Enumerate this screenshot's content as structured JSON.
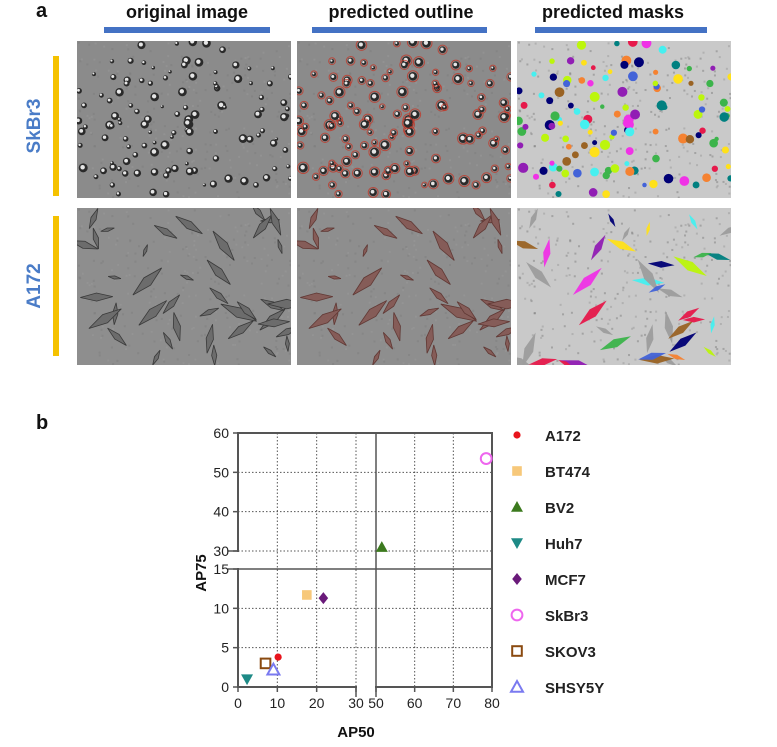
{
  "panel_a": {
    "letter": "a",
    "columns": [
      "original image",
      "predicted outline",
      "predicted masks"
    ],
    "rows": [
      "SkBr3",
      "A172"
    ]
  },
  "panel_b": {
    "letter": "b"
  },
  "colors": {
    "column_bar": "#4472c4",
    "row_bar": "#f5c200",
    "row_label": "#4a7cc7"
  },
  "chart_data": {
    "type": "scatter",
    "xlabel": "AP50",
    "ylabel": "AP75",
    "x_ticks": [
      0,
      10,
      20,
      30,
      50,
      60,
      70,
      80
    ],
    "y_ticks": [
      0,
      5,
      10,
      15,
      30,
      40,
      50,
      60
    ],
    "x_broken_axis": {
      "lower_segment": [
        0,
        30
      ],
      "upper_segment": [
        50,
        80
      ]
    },
    "y_broken_axis": {
      "lower_segment": [
        0,
        15
      ],
      "upper_segment": [
        30,
        60
      ]
    },
    "grid": true,
    "legend_placement": "right",
    "series": [
      {
        "name": "A172",
        "marker": "circle-filled",
        "color": "#e8141c",
        "x": 10.2,
        "y": 3.8
      },
      {
        "name": "BT474",
        "marker": "square-filled",
        "color": "#f7c87a",
        "x": 17.5,
        "y": 11.7
      },
      {
        "name": "BV2",
        "marker": "triangle-up-filled",
        "color": "#3c7a1e",
        "x": 51.5,
        "y": 31.0
      },
      {
        "name": "Huh7",
        "marker": "triangle-down-filled",
        "color": "#1e8a86",
        "x": 2.3,
        "y": 1.0
      },
      {
        "name": "MCF7",
        "marker": "diamond-filled",
        "color": "#6a1a7a",
        "x": 21.7,
        "y": 11.3
      },
      {
        "name": "SkBr3",
        "marker": "circle-open",
        "color": "#ee66ee",
        "x": 78.5,
        "y": 53.5
      },
      {
        "name": "SKOV3",
        "marker": "square-open",
        "color": "#8a4a10",
        "x": 7.0,
        "y": 3.0
      },
      {
        "name": "SHSY5Y",
        "marker": "triangle-up-open",
        "color": "#7a7af0",
        "x": 9.0,
        "y": 2.2
      }
    ]
  }
}
